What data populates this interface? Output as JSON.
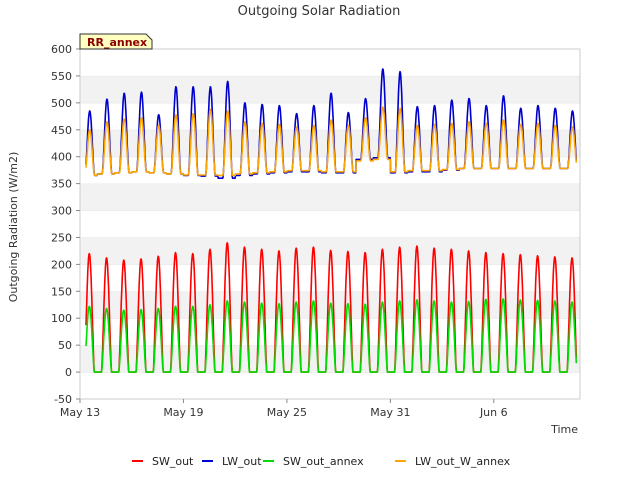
{
  "chart_data": {
    "type": "line",
    "title": "Outgoing Solar Radiation",
    "xlabel": "Time",
    "ylabel": "Outgoing Radiation (W/m2)",
    "ylim": [
      -50,
      600
    ],
    "yticks": [
      -50,
      0,
      50,
      100,
      150,
      200,
      250,
      300,
      350,
      400,
      450,
      500,
      550,
      600
    ],
    "x_range": [
      "2024-05-13",
      "2024-06-11"
    ],
    "x_ticks": [
      {
        "date": "2024-05-13",
        "label": "May 13"
      },
      {
        "date": "2024-05-19",
        "label": "May 19"
      },
      {
        "date": "2024-05-25",
        "label": "May 25"
      },
      {
        "date": "2024-05-31",
        "label": "May 31"
      },
      {
        "date": "2024-06-06",
        "label": "Jun 6"
      }
    ],
    "grid": "horizontal bands",
    "legend_position": "bottom",
    "badge": "RR_annex",
    "series": [
      {
        "name": "SW_out",
        "color": "#ff0000",
        "kind": "daily_peak",
        "night_value": 0,
        "daily_peaks": [
          220,
          212,
          208,
          210,
          215,
          222,
          220,
          228,
          240,
          232,
          228,
          225,
          230,
          232,
          226,
          224,
          222,
          228,
          232,
          234,
          230,
          228,
          225,
          222,
          220,
          218,
          216,
          214,
          212,
          210
        ]
      },
      {
        "name": "LW_out",
        "color": "#0000cc",
        "kind": "daily_cycle",
        "night_value": 368,
        "night_values": [
          365,
          368,
          370,
          372,
          370,
          368,
          365,
          364,
          360,
          365,
          368,
          370,
          372,
          372,
          370,
          370,
          395,
          398,
          370,
          372,
          372,
          375,
          378,
          378,
          378,
          378,
          378,
          378,
          378,
          378
        ],
        "daily_peaks": [
          485,
          507,
          518,
          520,
          478,
          530,
          530,
          530,
          540,
          500,
          497,
          495,
          480,
          495,
          518,
          482,
          508,
          563,
          558,
          493,
          495,
          505,
          508,
          495,
          513,
          490,
          495,
          490,
          485,
          480
        ]
      },
      {
        "name": "SW_out_annex",
        "color": "#00dd00",
        "kind": "daily_peak",
        "night_value": 0,
        "daily_peaks": [
          122,
          118,
          115,
          116,
          118,
          122,
          122,
          125,
          132,
          130,
          128,
          127,
          130,
          132,
          128,
          127,
          126,
          130,
          132,
          134,
          132,
          130,
          131,
          135,
          136,
          134,
          133,
          132,
          130,
          128
        ]
      },
      {
        "name": "LW_out_W_annex",
        "color": "#ffa500",
        "kind": "daily_cycle",
        "night_value": 368,
        "night_values": [
          365,
          368,
          370,
          372,
          370,
          368,
          366,
          366,
          365,
          368,
          370,
          372,
          374,
          374,
          372,
          372,
          392,
          395,
          372,
          374,
          374,
          376,
          378,
          378,
          378,
          378,
          378,
          378,
          378,
          378
        ],
        "daily_peaks": [
          450,
          465,
          470,
          472,
          458,
          478,
          480,
          488,
          485,
          465,
          462,
          460,
          455,
          458,
          468,
          458,
          472,
          492,
          490,
          458,
          460,
          462,
          465,
          462,
          468,
          460,
          462,
          458,
          455,
          452
        ]
      }
    ]
  }
}
